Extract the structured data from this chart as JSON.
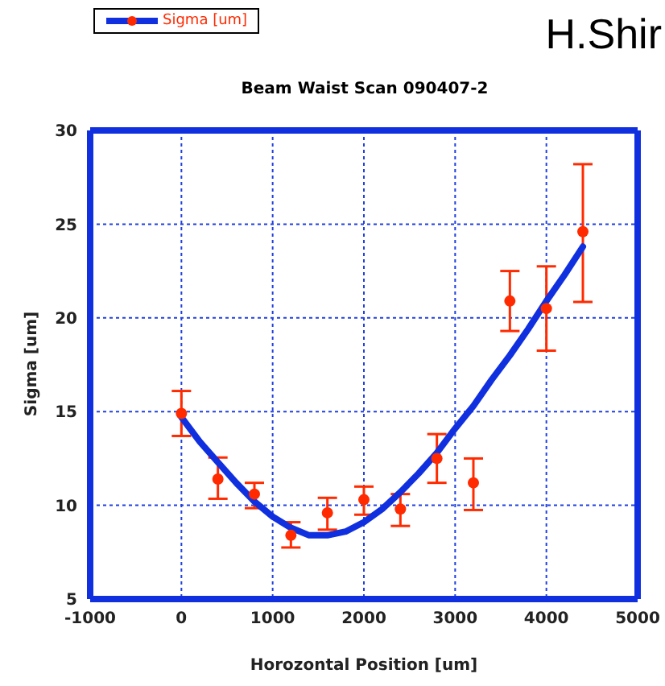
{
  "chart_data": {
    "type": "scatter",
    "title": "Beam Waist Scan 090407-2",
    "xlabel": "Horozontal Position  [um]",
    "ylabel": "Sigma [um]",
    "annotations": [
      "H.Shir"
    ],
    "xlim": [
      -1000,
      5000
    ],
    "xticks": [
      -1000,
      0,
      1000,
      2000,
      3000,
      4000,
      5000
    ],
    "ylim": [
      5,
      30
    ],
    "yticks": [
      5,
      10,
      15,
      20,
      25,
      30
    ],
    "grid": true,
    "legend": "top left",
    "marker": "circle",
    "series": [
      {
        "name": "Sigma [um]",
        "color": "#ff2a00",
        "x": [
          0,
          400,
          800,
          1200,
          1600,
          2000,
          2400,
          2800,
          3200,
          3600,
          4000,
          4400
        ],
        "values": [
          14.9,
          11.4,
          10.6,
          8.4,
          9.6,
          10.3,
          9.8,
          12.5,
          11.2,
          20.9,
          20.5,
          24.6
        ],
        "errors": [
          [
            13.7,
            16.1
          ],
          [
            10.35,
            12.55
          ],
          [
            9.85,
            11.2
          ],
          [
            7.75,
            9.1
          ],
          [
            8.7,
            10.4
          ],
          [
            9.5,
            11.0
          ],
          [
            8.9,
            10.6
          ],
          [
            11.2,
            13.8
          ],
          [
            9.75,
            12.5
          ],
          [
            19.3,
            22.5
          ],
          [
            18.25,
            22.75
          ],
          [
            20.85,
            28.2
          ]
        ]
      },
      {
        "type": "line",
        "color": "#1030e0",
        "marker": "none",
        "x": [
          0,
          200,
          400,
          600,
          800,
          1000,
          1200,
          1400,
          1600,
          1800,
          2000,
          2200,
          2400,
          2600,
          2800,
          3000,
          3200,
          3400,
          3600,
          3800,
          4000,
          4200,
          4400
        ],
        "values": [
          14.7,
          13.4,
          12.3,
          11.2,
          10.2,
          9.4,
          8.8,
          8.4,
          8.4,
          8.6,
          9.1,
          9.8,
          10.7,
          11.7,
          12.8,
          14.1,
          15.3,
          16.7,
          18.0,
          19.4,
          20.9,
          22.3,
          23.8
        ]
      }
    ]
  }
}
